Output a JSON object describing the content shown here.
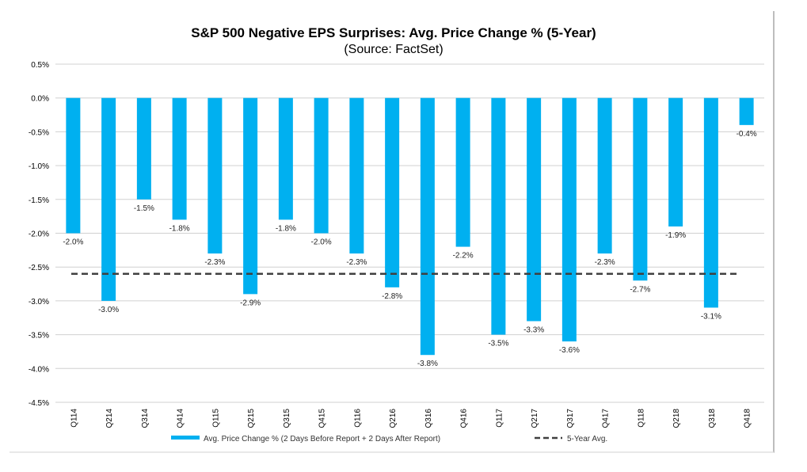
{
  "chart_data": {
    "type": "bar",
    "title": "S&P 500 Negative EPS Surprises: Avg. Price Change % (5-Year)",
    "subtitle": "(Source: FactSet)",
    "xlabel": "",
    "ylabel": "",
    "categories": [
      "Q114",
      "Q214",
      "Q314",
      "Q414",
      "Q115",
      "Q215",
      "Q315",
      "Q415",
      "Q116",
      "Q216",
      "Q316",
      "Q416",
      "Q117",
      "Q217",
      "Q317",
      "Q417",
      "Q118",
      "Q218",
      "Q318",
      "Q418"
    ],
    "series": [
      {
        "name": "Avg. Price Change % (2 Days Before Report + 2 Days After Report)",
        "type": "bar",
        "color": "#00b0f0",
        "values": [
          -2.0,
          -3.0,
          -1.5,
          -1.8,
          -2.3,
          -2.9,
          -1.8,
          -2.0,
          -2.3,
          -2.8,
          -3.8,
          -2.2,
          -3.5,
          -3.3,
          -3.6,
          -2.3,
          -2.7,
          -1.9,
          -3.1,
          -0.4
        ],
        "data_labels": [
          "-2.0%",
          "-3.0%",
          "-1.5%",
          "-1.8%",
          "-2.3%",
          "-2.9%",
          "-1.8%",
          "-2.0%",
          "-2.3%",
          "-2.8%",
          "-3.8%",
          "-2.2%",
          "-3.5%",
          "-3.3%",
          "-3.6%",
          "-2.3%",
          "-2.7%",
          "-1.9%",
          "-3.1%",
          "-0.4%"
        ]
      },
      {
        "name": "5-Year Avg.",
        "type": "line",
        "style": "dashed",
        "color": "#404040",
        "value": -2.6
      }
    ],
    "ylim": [
      -4.5,
      0.5
    ],
    "yticks": [
      0.5,
      0.0,
      -0.5,
      -1.0,
      -1.5,
      -2.0,
      -2.5,
      -3.0,
      -3.5,
      -4.0,
      -4.5
    ],
    "ytick_labels": [
      "0.5%",
      "0.0%",
      "-0.5%",
      "-1.0%",
      "-1.5%",
      "-2.0%",
      "-2.5%",
      "-3.0%",
      "-3.5%",
      "-4.0%",
      "-4.5%"
    ],
    "grid": true,
    "legend_position": "bottom"
  }
}
